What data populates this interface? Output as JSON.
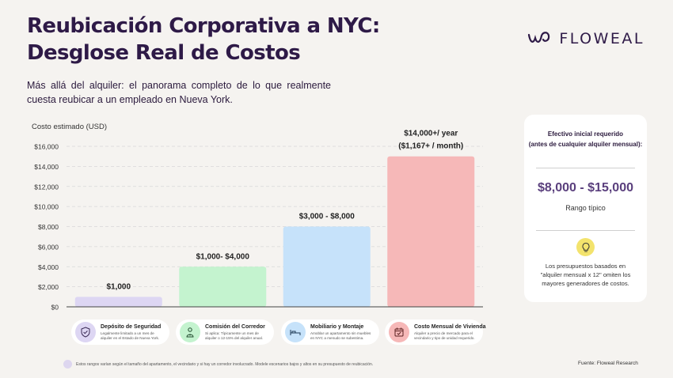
{
  "header": {
    "title_line1": "Reubicación Corporativa a NYC:",
    "title_line2": "Desglose Real de Costos",
    "subtitle": "Más allá del alquiler: el panorama completo de lo que realmente cuesta reubicar a un empleado en Nueva York."
  },
  "brand": {
    "name": "FLOWEAL"
  },
  "chart_data": {
    "type": "bar",
    "ylabel": "Costo estimado (USD)",
    "ylim": [
      0,
      16000
    ],
    "yticks": [
      0,
      2000,
      4000,
      6000,
      8000,
      10000,
      12000,
      14000,
      16000
    ],
    "ytick_labels": [
      "$0",
      "$2,000",
      "$4,000",
      "$6,000",
      "$8,000",
      "$10,000",
      "$12,000",
      "$14,000",
      "$16,000"
    ],
    "grid": true,
    "categories": [
      "Depósito de Seguridad",
      "Comisión del Corredor",
      "Mobiliario y Montaje",
      "Costo Mensual de Vivienda"
    ],
    "values": [
      1000,
      4000,
      8000,
      15000
    ],
    "bar_labels": [
      [
        "$1,000"
      ],
      [
        "$1,000- $4,000"
      ],
      [
        "$3,000 - $8,000"
      ],
      [
        "$14,000+/ year",
        "($1,167+ / month)"
      ]
    ],
    "colors": [
      "#ddd6f3",
      "#c4f3cf",
      "#c6e2fa",
      "#f6b8b8"
    ]
  },
  "legend": [
    {
      "title": "Depósito de Seguridad",
      "desc": "Legalmente limitado a un mes de alquiler en el Estado de Nueva York.",
      "icon": "shield-check-icon",
      "bg": "#ddd6f3"
    },
    {
      "title": "Comisión del Corredor",
      "desc": "Si aplica: Típicamente un mes de alquiler o 12-15% del alquiler anual.",
      "icon": "person-badge-icon",
      "bg": "#c4f3cf"
    },
    {
      "title": "Mobiliario y Montaje",
      "desc": "Amoblar un apartamento sin muebles en NYC a menudo se subestima.",
      "icon": "bed-icon",
      "bg": "#c6e2fa"
    },
    {
      "title": "Costo Mensual de Vivienda",
      "desc": "Alquiler a precio de mercado para el vecindario y tipo de unidad requerido.",
      "icon": "calendar-icon",
      "bg": "#f6b8b8"
    }
  ],
  "card": {
    "heading_line1": "Efectivo inicial requerido",
    "heading_line2": "(antes de cualquier alquiler mensual):",
    "range": "$8,000 - $15,000",
    "range_label": "Rango típico",
    "note": "Los presupuestos basados en \"alquiler mensual x 12\" omiten los mayores generadores de costos.",
    "icon": "lightbulb-icon"
  },
  "footnote": "Estos rangos varían según el tamaño del apartamento, el vecindario y si hay un corredor involucrado. Modele escenarios bajos y altos en su presupuesto de reubicación.",
  "source": "Fuente: Floweal Research"
}
